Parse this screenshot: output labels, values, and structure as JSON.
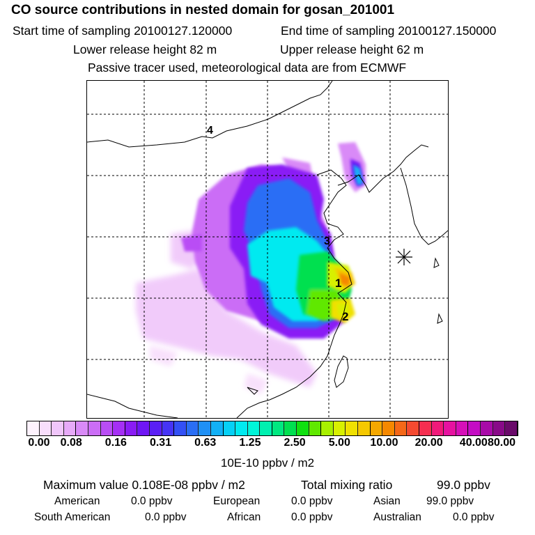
{
  "header": {
    "title": "CO  source contributions in nested domain for gosan_201001",
    "start_label": "Start time of sampling 20100127.120000",
    "end_label": "End time of sampling 20100127.150000",
    "lower_label": "Lower release height   82 m",
    "upper_label": "Upper release height   62 m",
    "tracer_note": "Passive tracer used, meteorological data are from ECMWF"
  },
  "map": {
    "source_labels": [
      "1",
      "2",
      "3",
      "4"
    ],
    "receptor_marker": "asterisk-icon"
  },
  "colorbar": {
    "ticks": [
      "0.00",
      "0.08",
      "0.16",
      "0.31",
      "0.63",
      "1.25",
      "2.50",
      "5.00",
      "10.00",
      "20.00",
      "40.00",
      "80.00"
    ],
    "unit_label": "10E-10 ppbv / m2",
    "colors": [
      "#fdf2fd",
      "#f8defc",
      "#f0c6fa",
      "#e7aaf8",
      "#d98af7",
      "#cb6df6",
      "#b94df5",
      "#a52ff5",
      "#8a1cf5",
      "#6f16f5",
      "#5a1ff5",
      "#4634f5",
      "#3350f5",
      "#2a6ef5",
      "#1f90f5",
      "#12b0f5",
      "#06d0f5",
      "#00eaf0",
      "#00f5d9",
      "#00f0b0",
      "#00e880",
      "#00e050",
      "#10e010",
      "#60e800",
      "#a8f000",
      "#d8f000",
      "#f0e000",
      "#f5c800",
      "#f5a800",
      "#f58800",
      "#f56818",
      "#f54a30",
      "#f52e50",
      "#f01a7a",
      "#e612a0",
      "#d60fb8",
      "#c40cc4",
      "#a80aa8",
      "#880a88",
      "#6a0a6a"
    ]
  },
  "stats": {
    "max_label": "Maximum value  0.108E-08 ppbv / m2",
    "total_label": "Total mixing ratio",
    "total_value": "99.0 ppbv",
    "regions": [
      {
        "name": "American",
        "value": "0.0 ppbv"
      },
      {
        "name": "European",
        "value": "0.0 ppbv"
      },
      {
        "name": "Asian",
        "value": "99.0 ppbv"
      },
      {
        "name": "South American",
        "value": "0.0 ppbv"
      },
      {
        "name": "African",
        "value": "0.0 ppbv"
      },
      {
        "name": "Australian",
        "value": "0.0 ppbv"
      }
    ]
  }
}
